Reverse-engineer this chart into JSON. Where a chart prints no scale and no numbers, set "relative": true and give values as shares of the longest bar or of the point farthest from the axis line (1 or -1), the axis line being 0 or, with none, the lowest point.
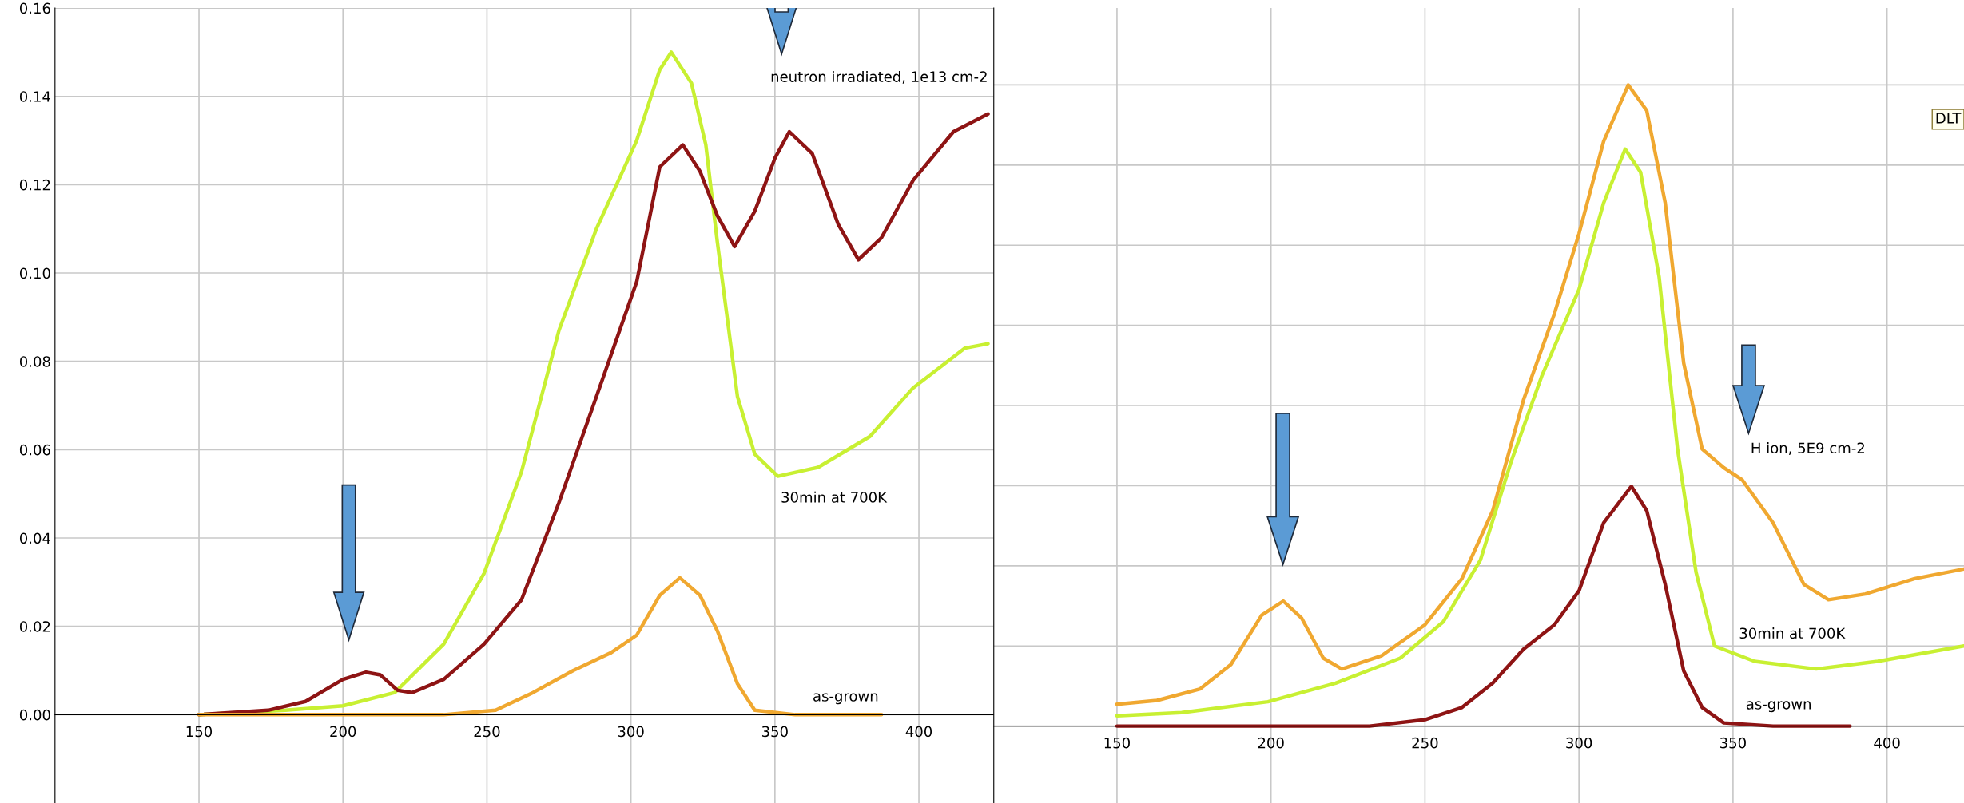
{
  "chart_data": [
    {
      "type": "line",
      "xlim": [
        100,
        426
      ],
      "xticks": [
        150,
        200,
        250,
        300,
        350,
        400
      ],
      "ylim": [
        -0.02,
        0.16
      ],
      "yticks": [
        {
          "value": 0,
          "label": "0.00"
        },
        {
          "value": 0.02,
          "label": "0.02"
        },
        {
          "value": 0.04,
          "label": "0.04"
        },
        {
          "value": 0.06,
          "label": "0.06"
        },
        {
          "value": 0.08,
          "label": "0.08"
        },
        {
          "value": 0.1,
          "label": "0.10"
        },
        {
          "value": 0.12,
          "label": "0.12"
        },
        {
          "value": 0.14,
          "label": "0.14"
        },
        {
          "value": 0.16,
          "label": "0.16"
        }
      ],
      "grid": true,
      "legend": false,
      "marker": "none",
      "line_style": "solid",
      "series": [
        {
          "color": "#c8f032",
          "x": [
            150,
            180,
            200,
            218,
            235,
            249,
            262,
            275,
            288,
            302,
            310,
            314,
            321,
            326,
            330,
            337,
            343,
            351,
            365,
            383,
            398,
            416,
            424
          ],
          "values": [
            0.0,
            0.001,
            0.002,
            0.005,
            0.016,
            0.032,
            0.055,
            0.087,
            0.11,
            0.13,
            0.146,
            0.15,
            0.143,
            0.129,
            0.107,
            0.072,
            0.059,
            0.054,
            0.056,
            0.063,
            0.074,
            0.083,
            0.084
          ]
        },
        {
          "color": "#8e1414",
          "x": [
            150,
            174,
            187,
            200,
            208,
            213,
            219,
            224,
            235,
            249,
            262,
            275,
            288,
            302,
            310,
            318,
            324,
            330,
            336,
            343,
            350,
            355,
            363,
            372,
            379,
            387,
            398,
            412,
            424
          ],
          "values": [
            0.0,
            0.001,
            0.003,
            0.008,
            0.0096,
            0.009,
            0.0055,
            0.005,
            0.008,
            0.016,
            0.026,
            0.048,
            0.072,
            0.098,
            0.124,
            0.129,
            0.123,
            0.113,
            0.106,
            0.114,
            0.126,
            0.132,
            0.127,
            0.111,
            0.103,
            0.108,
            0.121,
            0.132,
            0.136
          ]
        },
        {
          "color": "#f0a830",
          "x": [
            150,
            235,
            253,
            266,
            280,
            293,
            302,
            310,
            317,
            324,
            330,
            337,
            343,
            357,
            387
          ],
          "values": [
            0.0,
            0.0,
            0.001,
            0.005,
            0.01,
            0.014,
            0.018,
            0.027,
            0.031,
            0.027,
            0.019,
            0.007,
            0.001,
            0.0,
            0.0
          ]
        }
      ],
      "annotations": [
        "neutron irradiated, 1e13 cm-2",
        "30min at 700K",
        "as-grown"
      ]
    },
    {
      "type": "line",
      "relative": true,
      "xlim": [
        110,
        425
      ],
      "xticks": [
        150,
        200,
        250,
        300,
        350,
        400
      ],
      "tick_labels": "x",
      "grid": true,
      "legend": false,
      "marker": "none",
      "line_style": "solid",
      "series": [
        {
          "color": "#f0a830",
          "x": [
            150,
            163,
            177,
            187,
            197,
            204,
            210,
            217,
            223,
            236,
            250,
            262,
            272,
            282,
            292,
            300,
            308,
            316,
            322,
            328,
            334,
            340,
            347,
            353,
            363,
            373,
            381,
            393,
            409,
            425
          ],
          "values": [
            0.034,
            0.04,
            0.058,
            0.096,
            0.173,
            0.195,
            0.168,
            0.106,
            0.089,
            0.11,
            0.158,
            0.23,
            0.336,
            0.509,
            0.643,
            0.768,
            0.912,
            1.0,
            0.96,
            0.816,
            0.566,
            0.432,
            0.403,
            0.384,
            0.317,
            0.221,
            0.197,
            0.206,
            0.23,
            0.245
          ]
        },
        {
          "color": "#c8f032",
          "x": [
            150,
            171,
            199,
            221,
            242,
            256,
            268,
            278,
            288,
            300,
            308,
            315,
            320,
            326,
            332,
            338,
            344,
            357,
            377,
            397,
            425
          ],
          "values": [
            0.016,
            0.021,
            0.038,
            0.067,
            0.106,
            0.163,
            0.259,
            0.413,
            0.547,
            0.681,
            0.816,
            0.9,
            0.864,
            0.701,
            0.432,
            0.24,
            0.125,
            0.101,
            0.089,
            0.101,
            0.125
          ]
        },
        {
          "color": "#8e1414",
          "x": [
            150,
            232,
            250,
            262,
            272,
            282,
            292,
            300,
            308,
            317,
            322,
            328,
            334,
            340,
            347,
            363,
            388
          ],
          "values": [
            0.0,
            0.0,
            0.01,
            0.029,
            0.067,
            0.12,
            0.158,
            0.211,
            0.317,
            0.374,
            0.336,
            0.221,
            0.086,
            0.029,
            0.005,
            0.0,
            0.0
          ]
        }
      ],
      "annotations": [
        "H ion, 5E9 cm-2",
        "30min at 700K",
        "as-grown",
        "DLT"
      ]
    }
  ]
}
